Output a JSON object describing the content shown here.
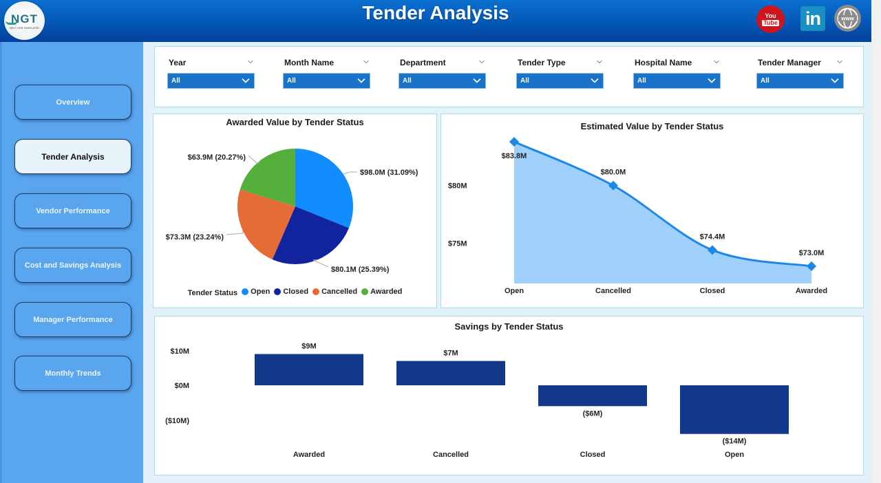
{
  "header": {
    "title": "Tender Analysis",
    "logo": {
      "main": "NGT",
      "sub": "NEXT GEN TEMPLATES"
    },
    "social_icons": [
      {
        "name": "youtube-icon",
        "label_top": "You",
        "label_bottom": "Tube",
        "color": "#d0141c"
      },
      {
        "name": "linkedin-icon",
        "label": "in",
        "color": "#1a8fc1"
      },
      {
        "name": "website-icon",
        "label": "www",
        "color": "#8b8b8b"
      }
    ]
  },
  "sidebar": {
    "items": [
      {
        "label": "Overview",
        "active": false
      },
      {
        "label": "Tender Analysis",
        "active": true
      },
      {
        "label": "Vendor Performance",
        "active": false
      },
      {
        "label": "Cost and Savings Analysis",
        "active": false
      },
      {
        "label": "Manager Performance",
        "active": false
      },
      {
        "label": "Monthly Trends",
        "active": false
      }
    ]
  },
  "filters": [
    {
      "label": "Year",
      "value": "All"
    },
    {
      "label": "Month Name",
      "value": "All"
    },
    {
      "label": "Department",
      "value": "All"
    },
    {
      "label": "Tender Type",
      "value": "All"
    },
    {
      "label": "Hospital Name",
      "value": "All"
    },
    {
      "label": "Tender Manager",
      "value": "All"
    }
  ],
  "colors": {
    "header_blue": "#0458b6",
    "sidebar_blue": "#5aa6ee",
    "filter_blue": "#1a73c9",
    "open": "#118dff",
    "closed": "#12239e",
    "cancelled": "#e66c37",
    "awarded": "#54b03a",
    "area_fill": "#9fd0fb",
    "line": "#1e88e5",
    "bar": "#12388a"
  },
  "chart_data": [
    {
      "type": "pie",
      "title": "Awarded Value by Tender Status",
      "legend_title": "Tender Status",
      "legend_position": "bottom",
      "categories": [
        "Open",
        "Closed",
        "Cancelled",
        "Awarded"
      ],
      "values": [
        98.0,
        80.1,
        73.3,
        63.9
      ],
      "percentages": [
        31.09,
        25.39,
        23.24,
        20.27
      ],
      "labels": [
        "$98.0M (31.09%)",
        "$80.1M (25.39%)",
        "$73.3M (23.24%)",
        "$63.9M (20.27%)"
      ],
      "unit": "$M"
    },
    {
      "type": "area",
      "title": "Estimated Value by Tender Status",
      "categories": [
        "Open",
        "Cancelled",
        "Closed",
        "Awarded"
      ],
      "values": [
        83.8,
        80.0,
        74.4,
        73.0
      ],
      "labels": [
        "$83.8M",
        "$80.0M",
        "$74.4M",
        "$73.0M"
      ],
      "y_ticks": [
        "$80M",
        "$75M"
      ],
      "ylim": [
        71.5,
        85
      ],
      "grid": false,
      "unit": "$M"
    },
    {
      "type": "bar",
      "title": "Savings by Tender Status",
      "categories": [
        "Awarded",
        "Cancelled",
        "Closed",
        "Open"
      ],
      "values": [
        9,
        7,
        -6,
        -14
      ],
      "labels": [
        "$9M",
        "$7M",
        "($6M)",
        "($14M)"
      ],
      "y_ticks": [
        "$10M",
        "$0M",
        "($10M)"
      ],
      "ylim": [
        -14,
        10
      ],
      "grid": false,
      "unit": "$M"
    }
  ]
}
